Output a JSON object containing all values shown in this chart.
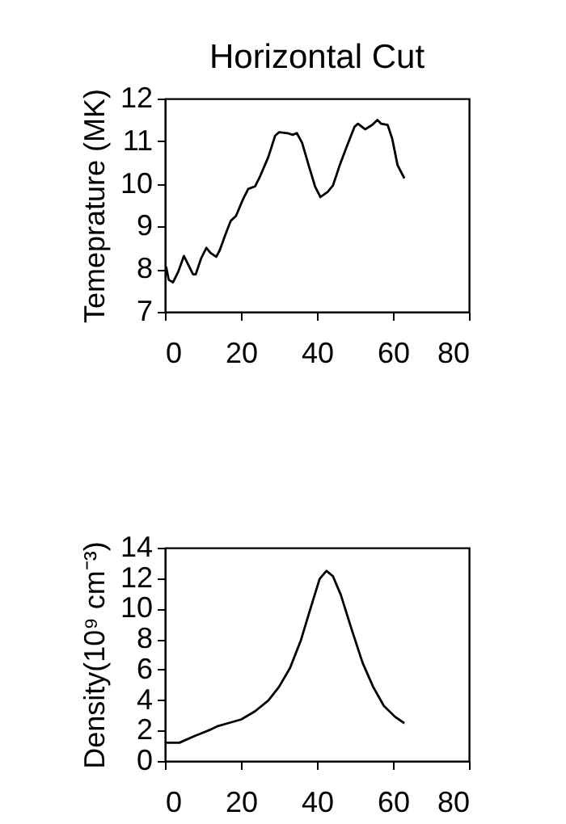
{
  "chart_data": [
    {
      "type": "line",
      "title": "Horizontal Cut",
      "ylabel": "Temeprature (MK)",
      "xlim": [
        0,
        80
      ],
      "xticks": [
        0,
        20,
        40,
        60,
        80
      ],
      "ylim": [
        7,
        12
      ],
      "yticks": [
        7,
        8,
        9,
        10,
        11,
        12
      ],
      "x": [
        0.3,
        1,
        2.1,
        3.5,
        5,
        6,
        7.4,
        8.1,
        9.5,
        10.9,
        12,
        13.5,
        14.4,
        15.9,
        17.3,
        18.7,
        20.5,
        21.9,
        23.7,
        25.1,
        27.2,
        29,
        30,
        32.2,
        33.6,
        34.7,
        36.1,
        37.8,
        39.5,
        40.9,
        42.8,
        44.2,
        46,
        48,
        49.9,
        50.8,
        52.7,
        54.5,
        55.9,
        56.9,
        58.6,
        59.8,
        61.2,
        63
      ],
      "series": [
        {
          "color": "#000000",
          "values": [
            8.06,
            7.75,
            7.69,
            7.94,
            8.31,
            8.13,
            7.88,
            7.88,
            8.25,
            8.5,
            8.38,
            8.29,
            8.44,
            8.81,
            9.13,
            9.25,
            9.63,
            9.88,
            9.94,
            10.19,
            10.63,
            11.13,
            11.21,
            11.19,
            11.15,
            11.19,
            10.96,
            10.44,
            9.94,
            9.69,
            9.81,
            9.96,
            10.44,
            10.91,
            11.34,
            11.41,
            11.28,
            11.38,
            11.5,
            11.41,
            11.38,
            11.06,
            10.44,
            10.13
          ]
        }
      ]
    },
    {
      "type": "line",
      "ylabel": "Density(10⁹ cm⁻³)",
      "xlim": [
        0,
        80
      ],
      "xticks": [
        0,
        20,
        40,
        60,
        80
      ],
      "ylim": [
        0,
        14
      ],
      "yticks": [
        0,
        2,
        4,
        6,
        8,
        10,
        12,
        14
      ],
      "x": [
        0.3,
        3.8,
        8.1,
        11.6,
        13.7,
        16.6,
        20.1,
        23.7,
        27.2,
        30,
        32.9,
        35.7,
        38.5,
        40.7,
        42.5,
        44.2,
        46.3,
        49.2,
        52,
        54.8,
        57.6,
        60.5,
        63
      ],
      "series": [
        {
          "color": "#000000",
          "values": [
            1.2,
            1.2,
            1.67,
            2.02,
            2.27,
            2.48,
            2.73,
            3.26,
            3.97,
            4.86,
            6.1,
            7.87,
            10.18,
            11.95,
            12.48,
            12.13,
            10.89,
            8.58,
            6.45,
            4.86,
            3.62,
            2.91,
            2.48
          ]
        }
      ]
    }
  ]
}
